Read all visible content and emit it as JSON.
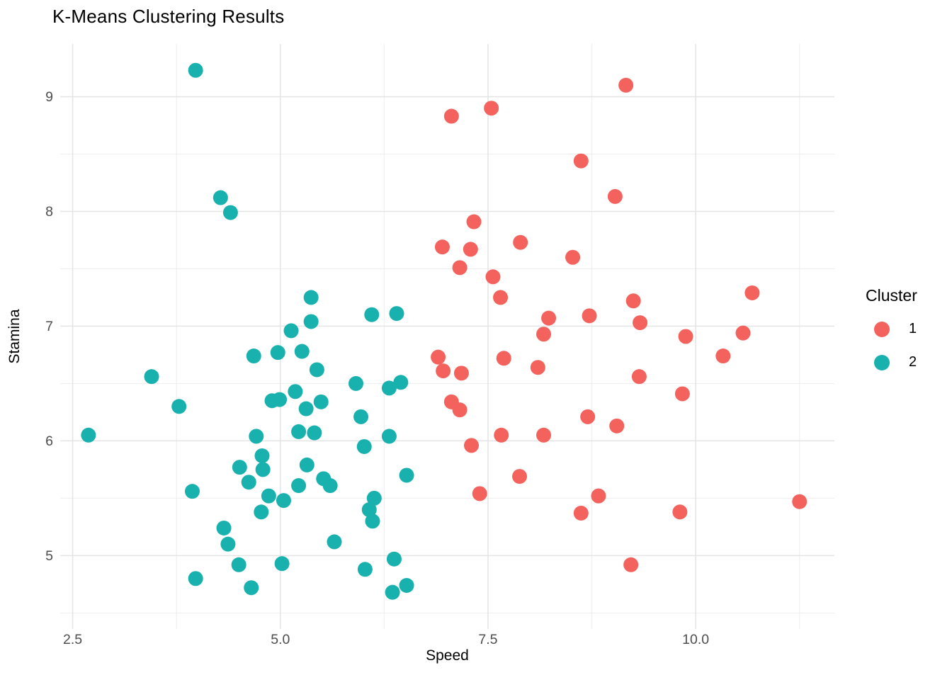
{
  "title": "K-Means Clustering Results",
  "legend": {
    "title": "Cluster",
    "position": "right",
    "entries": [
      {
        "label": "1",
        "color": "#F3625D"
      },
      {
        "label": "2",
        "color": "#18B1AE"
      }
    ]
  },
  "colors": {
    "background": "#FFFFFF",
    "grid_major": "#E4E4E4",
    "grid_minor": "#EDEDED",
    "tick_text": "#4D4D4D",
    "cluster1": "#F3625D",
    "cluster2": "#18B1AE"
  },
  "chart_data": {
    "type": "scatter",
    "title": "K-Means Clustering Results",
    "xlabel": "Speed",
    "ylabel": "Stamina",
    "xlim": [
      2.35,
      11.67
    ],
    "ylim": [
      4.36,
      9.46
    ],
    "x_ticks": [
      2.5,
      5.0,
      7.5,
      10.0
    ],
    "x_tick_labels": [
      "2.5",
      "5.0",
      "7.5",
      "10.0"
    ],
    "x_minor_ticks": [
      3.75,
      6.25,
      8.75,
      11.25
    ],
    "y_ticks": [
      5,
      6,
      7,
      8,
      9
    ],
    "y_tick_labels": [
      "5",
      "6",
      "7",
      "8",
      "9"
    ],
    "y_minor_ticks": [
      4.5,
      5.5,
      6.5,
      7.5,
      8.5
    ],
    "grid": true,
    "legend_position": "right",
    "point_radius": 10.5,
    "series": [
      {
        "name": "1",
        "color": "#F3625D",
        "points": [
          [
            9.16,
            9.1
          ],
          [
            7.06,
            8.83
          ],
          [
            7.54,
            8.9
          ],
          [
            8.62,
            8.44
          ],
          [
            9.03,
            8.13
          ],
          [
            7.33,
            7.91
          ],
          [
            6.95,
            7.69
          ],
          [
            7.29,
            7.67
          ],
          [
            7.89,
            7.73
          ],
          [
            7.16,
            7.51
          ],
          [
            8.52,
            7.6
          ],
          [
            7.56,
            7.43
          ],
          [
            7.65,
            7.25
          ],
          [
            8.23,
            7.07
          ],
          [
            8.17,
            6.93
          ],
          [
            8.72,
            7.09
          ],
          [
            9.25,
            7.22
          ],
          [
            10.68,
            7.29
          ],
          [
            9.33,
            7.03
          ],
          [
            9.88,
            6.91
          ],
          [
            10.57,
            6.94
          ],
          [
            10.33,
            6.74
          ],
          [
            9.32,
            6.56
          ],
          [
            9.84,
            6.41
          ],
          [
            8.7,
            6.21
          ],
          [
            9.05,
            6.13
          ],
          [
            6.9,
            6.73
          ],
          [
            6.96,
            6.61
          ],
          [
            7.18,
            6.59
          ],
          [
            7.69,
            6.72
          ],
          [
            8.1,
            6.64
          ],
          [
            7.06,
            6.34
          ],
          [
            7.16,
            6.27
          ],
          [
            7.3,
            5.96
          ],
          [
            7.66,
            6.05
          ],
          [
            8.17,
            6.05
          ],
          [
            7.88,
            5.69
          ],
          [
            7.4,
            5.54
          ],
          [
            8.83,
            5.52
          ],
          [
            8.62,
            5.37
          ],
          [
            9.81,
            5.38
          ],
          [
            11.25,
            5.47
          ],
          [
            9.22,
            4.92
          ]
        ]
      },
      {
        "name": "2",
        "color": "#18B1AE",
        "points": [
          [
            3.98,
            9.23
          ],
          [
            4.28,
            8.12
          ],
          [
            4.4,
            7.99
          ],
          [
            5.37,
            7.25
          ],
          [
            5.37,
            7.04
          ],
          [
            5.13,
            6.96
          ],
          [
            4.68,
            6.74
          ],
          [
            4.97,
            6.77
          ],
          [
            5.26,
            6.78
          ],
          [
            5.44,
            6.62
          ],
          [
            3.45,
            6.56
          ],
          [
            5.18,
            6.43
          ],
          [
            4.99,
            6.36
          ],
          [
            4.9,
            6.35
          ],
          [
            3.78,
            6.3
          ],
          [
            5.31,
            6.28
          ],
          [
            2.69,
            6.05
          ],
          [
            4.71,
            6.04
          ],
          [
            5.22,
            6.08
          ],
          [
            5.41,
            6.07
          ],
          [
            6.1,
            7.1
          ],
          [
            6.4,
            7.11
          ],
          [
            5.91,
            6.5
          ],
          [
            6.31,
            6.46
          ],
          [
            6.45,
            6.51
          ],
          [
            5.49,
            6.34
          ],
          [
            5.97,
            6.21
          ],
          [
            6.01,
            5.95
          ],
          [
            6.31,
            6.04
          ],
          [
            4.78,
            5.87
          ],
          [
            4.51,
            5.77
          ],
          [
            4.79,
            5.75
          ],
          [
            4.62,
            5.64
          ],
          [
            3.94,
            5.56
          ],
          [
            4.86,
            5.52
          ],
          [
            5.04,
            5.48
          ],
          [
            5.22,
            5.61
          ],
          [
            5.32,
            5.79
          ],
          [
            5.52,
            5.67
          ],
          [
            5.6,
            5.61
          ],
          [
            4.77,
            5.38
          ],
          [
            4.32,
            5.24
          ],
          [
            4.37,
            5.1
          ],
          [
            4.5,
            4.92
          ],
          [
            5.02,
            4.93
          ],
          [
            3.98,
            4.8
          ],
          [
            4.65,
            4.72
          ],
          [
            6.52,
            5.7
          ],
          [
            6.13,
            5.5
          ],
          [
            6.07,
            5.4
          ],
          [
            6.11,
            5.3
          ],
          [
            5.65,
            5.12
          ],
          [
            6.37,
            4.97
          ],
          [
            6.02,
            4.88
          ],
          [
            6.52,
            4.74
          ],
          [
            6.35,
            4.68
          ]
        ]
      }
    ]
  }
}
